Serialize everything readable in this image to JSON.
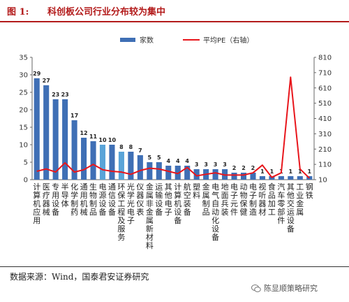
{
  "figure": {
    "number": "图 1:",
    "title": "科创板公司行业分布较为集中",
    "source": "数据来源：Wind，国泰君安证券研究",
    "watermark": "陈显顺策略研究",
    "watermark_icon": "wechat-icon"
  },
  "chart_data": {
    "type": "bar",
    "categories": [
      "计算机应用",
      "医疗器械",
      "专用设备",
      "半导体",
      "化学制药",
      "通用机械",
      "生物制品",
      "电源设备",
      "通信设备",
      "环保工程及服务",
      "光学光电子",
      "仪器仪表",
      "金属非金属新材料",
      "运输设备",
      "其他电子",
      "计算机设备",
      "航空装备",
      "塑料",
      "金属制品",
      "电气自动化设备",
      "地面兵装",
      "电子元件",
      "动物保健",
      "电子制造",
      "视听器材",
      "食品加工",
      "汽车零部件",
      "其他交运设备",
      "工业金属",
      "钢铁"
    ],
    "series": [
      {
        "name": "家数",
        "axis": "left",
        "type": "bar",
        "values": [
          29,
          27,
          23,
          23,
          17,
          12,
          11,
          10,
          10,
          8,
          8,
          7,
          5,
          5,
          4,
          4,
          4,
          3,
          3,
          3,
          3,
          2,
          2,
          2,
          1,
          1,
          1,
          1,
          1,
          1
        ],
        "highlight_index": [
          7,
          9
        ],
        "color": "#3f6fb5",
        "highlight_color": "#5aa4d8"
      },
      {
        "name": "平均PE（右轴）",
        "axis": "right",
        "type": "line",
        "color": "#e8151b",
        "values": [
          65,
          80,
          60,
          120,
          60,
          75,
          110,
          75,
          65,
          60,
          45,
          70,
          85,
          80,
          65,
          50,
          90,
          35,
          45,
          55,
          40,
          40,
          40,
          55,
          105,
          25,
          55,
          680,
          80,
          20
        ]
      }
    ],
    "y_left": {
      "min": 0,
      "max": 35,
      "ticks": [
        0,
        5,
        10,
        15,
        20,
        25,
        30,
        35
      ]
    },
    "y_right": {
      "min": 10,
      "max": 810,
      "ticks": [
        10,
        110,
        210,
        310,
        410,
        510,
        610,
        710,
        810
      ]
    },
    "legend": {
      "placement": "top-center",
      "items": [
        "家数",
        "平均PE（右轴）"
      ]
    },
    "grid": false
  }
}
